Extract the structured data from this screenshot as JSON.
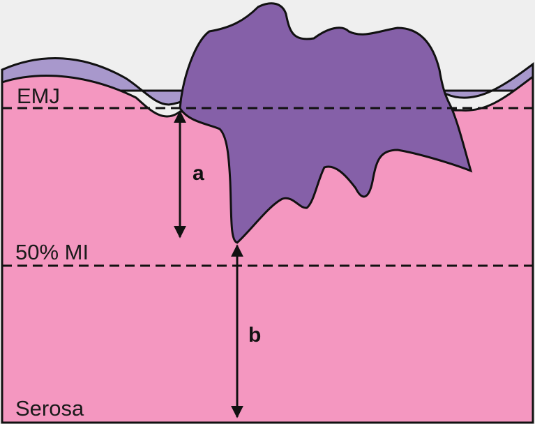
{
  "labels": {
    "emj": "EMJ",
    "a": "a",
    "mi": "50% MI",
    "b": "b",
    "serosa": "Serosa"
  }
}
